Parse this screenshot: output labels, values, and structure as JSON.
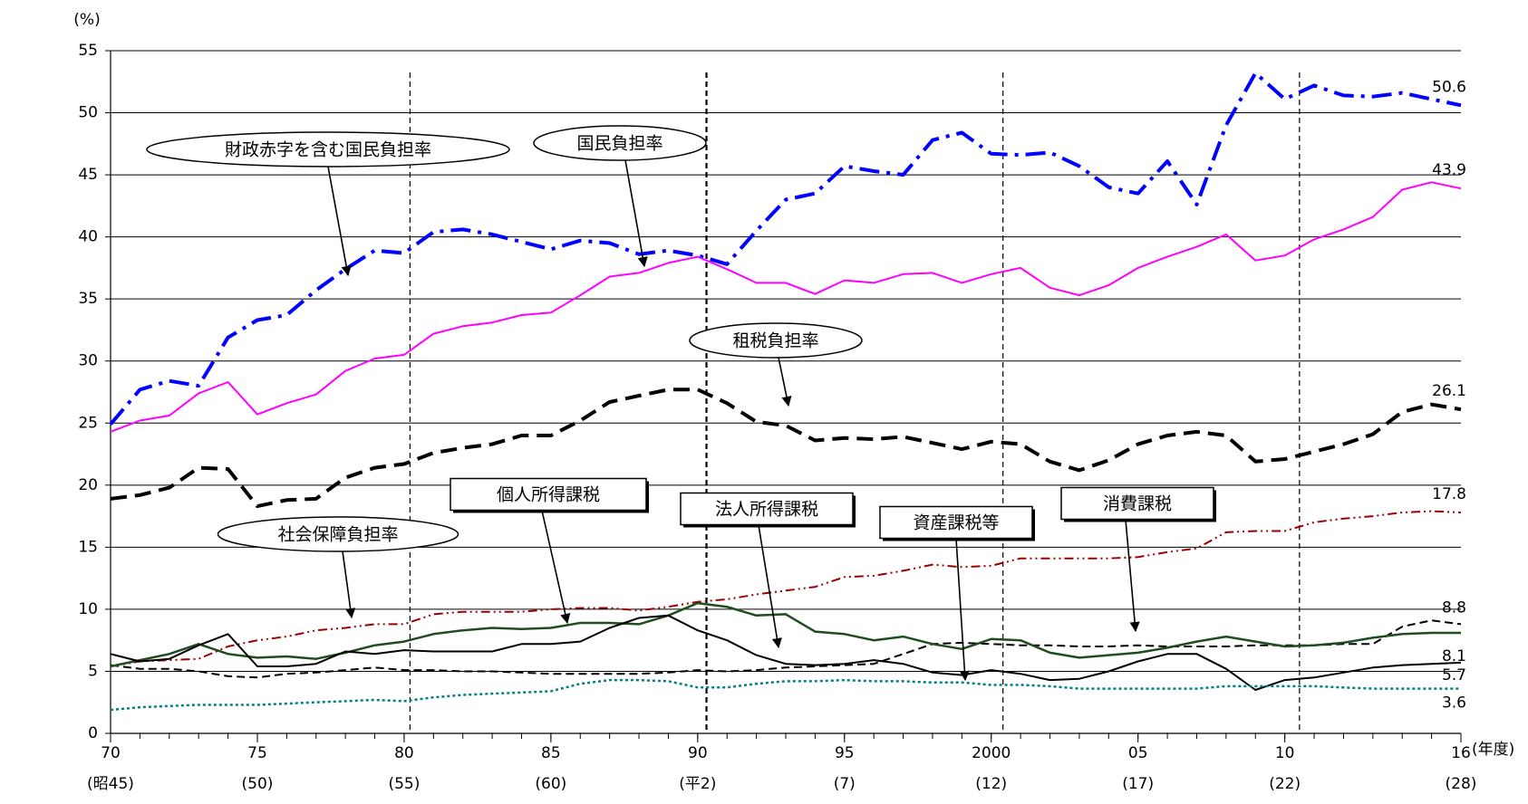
{
  "chart_data": {
    "type": "line",
    "y_label": "(%)",
    "x_label": "(年度)",
    "x": [
      1970,
      1971,
      1972,
      1973,
      1974,
      1975,
      1976,
      1977,
      1978,
      1979,
      1980,
      1981,
      1982,
      1983,
      1984,
      1985,
      1986,
      1987,
      1988,
      1989,
      1990,
      1991,
      1992,
      1993,
      1994,
      1995,
      1996,
      1997,
      1998,
      1999,
      2000,
      2001,
      2002,
      2003,
      2004,
      2005,
      2006,
      2007,
      2008,
      2009,
      2010,
      2011,
      2012,
      2013,
      2014,
      2015,
      2016
    ],
    "xlim": [
      1970,
      2016
    ],
    "xticks": [
      {
        "value": 1970,
        "label": "70",
        "sublabel": "(昭45)"
      },
      {
        "value": 1975,
        "label": "75",
        "sublabel": "(50)"
      },
      {
        "value": 1980,
        "label": "80",
        "sublabel": "(55)"
      },
      {
        "value": 1985,
        "label": "85",
        "sublabel": "(60)"
      },
      {
        "value": 1990,
        "label": "90",
        "sublabel": "(平2)"
      },
      {
        "value": 1995,
        "label": "95",
        "sublabel": "(7)"
      },
      {
        "value": 2000,
        "label": "2000",
        "sublabel": "(12)"
      },
      {
        "value": 2005,
        "label": "05",
        "sublabel": "(17)"
      },
      {
        "value": 2010,
        "label": "10",
        "sublabel": "(22)"
      },
      {
        "value": 2016,
        "label": "16",
        "sublabel": "(28)"
      }
    ],
    "ylim": [
      0,
      55
    ],
    "yticks": [
      0,
      5,
      10,
      15,
      20,
      25,
      30,
      35,
      40,
      45,
      50,
      55
    ],
    "grid": true,
    "vlines": [
      1980.2,
      1990.3,
      2000.4,
      2010.5
    ],
    "end_labels": true,
    "series": [
      {
        "name": "財政赤字を含む国民負担率",
        "color": "#0000ff",
        "style": "dashdot",
        "width": 4,
        "values": [
          24.9,
          27.7,
          28.4,
          28.0,
          31.9,
          33.3,
          33.7,
          35.7,
          37.4,
          38.9,
          38.7,
          40.4,
          40.6,
          40.2,
          39.6,
          39.0,
          39.7,
          39.5,
          38.6,
          38.9,
          38.5,
          37.8,
          40.5,
          43.0,
          43.5,
          45.7,
          45.3,
          45.0,
          47.8,
          48.4,
          46.7,
          46.6,
          46.8,
          45.7,
          44.0,
          43.5,
          46.1,
          42.6,
          49.0,
          53.2,
          51.1,
          52.2,
          51.4,
          51.3,
          51.6,
          51.1,
          50.6
        ]
      },
      {
        "name": "国民負担率",
        "color": "#ff00ff",
        "style": "solid",
        "width": 2,
        "values": [
          24.3,
          25.2,
          25.6,
          27.4,
          28.3,
          25.7,
          26.6,
          27.3,
          29.2,
          30.2,
          30.5,
          32.2,
          32.8,
          33.1,
          33.7,
          33.9,
          35.3,
          36.8,
          37.1,
          37.9,
          38.4,
          37.4,
          36.3,
          36.3,
          35.4,
          36.5,
          36.3,
          37.0,
          37.1,
          36.3,
          37.0,
          37.5,
          35.9,
          35.3,
          36.1,
          37.5,
          38.4,
          39.2,
          40.2,
          38.1,
          38.5,
          39.8,
          40.6,
          41.6,
          43.8,
          44.4,
          43.9
        ]
      },
      {
        "name": "租税負担率",
        "color": "#000000",
        "style": "dash",
        "width": 4,
        "values": [
          18.9,
          19.2,
          19.8,
          21.4,
          21.3,
          18.3,
          18.8,
          18.9,
          20.6,
          21.4,
          21.7,
          22.6,
          23.0,
          23.3,
          24.0,
          24.0,
          25.2,
          26.7,
          27.2,
          27.7,
          27.7,
          26.6,
          25.1,
          24.8,
          23.6,
          23.8,
          23.7,
          23.9,
          23.4,
          22.9,
          23.5,
          23.3,
          21.9,
          21.2,
          22.0,
          23.3,
          24.0,
          24.3,
          24.0,
          21.9,
          22.1,
          22.7,
          23.3,
          24.1,
          25.9,
          26.5,
          26.1
        ]
      },
      {
        "name": "社会保障負担率",
        "color": "#990000",
        "style": "dashdotdot",
        "width": 2,
        "values": [
          5.4,
          5.8,
          5.9,
          6.0,
          7.0,
          7.5,
          7.8,
          8.3,
          8.5,
          8.8,
          8.8,
          9.6,
          9.8,
          9.8,
          9.8,
          10.0,
          10.1,
          10.1,
          9.9,
          10.2,
          10.6,
          10.8,
          11.2,
          11.5,
          11.8,
          12.6,
          12.7,
          13.1,
          13.6,
          13.4,
          13.5,
          14.1,
          14.1,
          14.1,
          14.1,
          14.2,
          14.6,
          14.9,
          16.2,
          16.3,
          16.3,
          17.0,
          17.3,
          17.5,
          17.8,
          17.9,
          17.8
        ]
      },
      {
        "name": "消費課税",
        "color": "#000000",
        "style": "dashthin",
        "width": 2,
        "values": [
          5.5,
          5.2,
          5.2,
          5.0,
          4.6,
          4.5,
          4.8,
          4.9,
          5.1,
          5.3,
          5.1,
          5.1,
          5.0,
          5.0,
          4.9,
          4.8,
          4.8,
          4.8,
          4.8,
          4.9,
          5.1,
          5.0,
          5.1,
          5.3,
          5.4,
          5.5,
          5.6,
          6.4,
          7.2,
          7.3,
          7.2,
          7.1,
          7.1,
          7.0,
          7.0,
          7.1,
          7.0,
          7.0,
          7.0,
          7.1,
          7.1,
          7.1,
          7.2,
          7.2,
          8.6,
          9.1,
          8.8
        ]
      },
      {
        "name": "個人所得課税",
        "color": "#1f4d1f",
        "style": "solid",
        "width": 2.5,
        "values": [
          5.4,
          5.9,
          6.4,
          7.2,
          6.4,
          6.1,
          6.2,
          6.0,
          6.5,
          7.1,
          7.4,
          8.0,
          8.3,
          8.5,
          8.4,
          8.5,
          8.9,
          8.9,
          8.8,
          9.5,
          10.5,
          10.2,
          9.5,
          9.6,
          8.2,
          8.0,
          7.5,
          7.8,
          7.2,
          6.8,
          7.6,
          7.5,
          6.5,
          6.1,
          6.3,
          6.5,
          6.9,
          7.4,
          7.8,
          7.4,
          7.0,
          7.1,
          7.3,
          7.7,
          8.0,
          8.1,
          8.1
        ]
      },
      {
        "name": "法人所得課税",
        "color": "#000000",
        "style": "solid",
        "width": 2,
        "values": [
          6.4,
          5.8,
          6.0,
          7.1,
          8.0,
          5.4,
          5.4,
          5.6,
          6.6,
          6.4,
          6.7,
          6.6,
          6.6,
          6.6,
          7.2,
          7.2,
          7.4,
          8.5,
          9.3,
          9.5,
          8.3,
          7.5,
          6.3,
          5.6,
          5.5,
          5.6,
          5.9,
          5.6,
          4.9,
          4.7,
          5.1,
          4.8,
          4.3,
          4.4,
          5.0,
          5.8,
          6.4,
          6.4,
          5.2,
          3.5,
          4.3,
          4.5,
          4.9,
          5.3,
          5.5,
          5.6,
          5.7
        ]
      },
      {
        "name": "資産課税等",
        "color": "#008080",
        "style": "dot",
        "width": 2.5,
        "values": [
          1.9,
          2.1,
          2.2,
          2.3,
          2.3,
          2.3,
          2.4,
          2.5,
          2.6,
          2.7,
          2.6,
          2.9,
          3.1,
          3.2,
          3.3,
          3.4,
          4.0,
          4.3,
          4.3,
          4.2,
          3.7,
          3.7,
          4.0,
          4.2,
          4.2,
          4.3,
          4.2,
          4.2,
          4.1,
          4.1,
          3.9,
          3.9,
          3.8,
          3.6,
          3.6,
          3.6,
          3.6,
          3.6,
          3.8,
          3.8,
          3.8,
          3.8,
          3.7,
          3.6,
          3.6,
          3.6,
          3.6
        ]
      }
    ],
    "annotations": [
      {
        "text": "財政赤字を含む国民負担率",
        "shape": "ellipse"
      },
      {
        "text": "国民負担率",
        "shape": "ellipse"
      },
      {
        "text": "租税負担率",
        "shape": "ellipse"
      },
      {
        "text": "社会保障負担率",
        "shape": "ellipse"
      },
      {
        "text": "個人所得課税",
        "shape": "box"
      },
      {
        "text": "法人所得課税",
        "shape": "box"
      },
      {
        "text": "資産課税等",
        "shape": "box"
      },
      {
        "text": "消費課税",
        "shape": "box"
      }
    ]
  }
}
